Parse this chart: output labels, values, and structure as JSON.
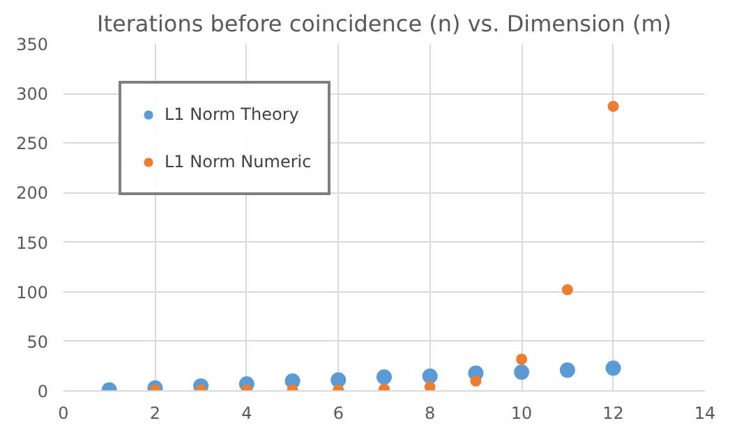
{
  "chart_data": {
    "type": "scatter",
    "title": "Iterations before coincidence (n) vs. Dimension (m)",
    "series": [
      {
        "name": "L1 Norm Theory",
        "color": "#5b9bd5",
        "x": [
          1,
          2,
          3,
          4,
          5,
          6,
          7,
          8,
          9,
          10,
          11,
          12
        ],
        "values": [
          1,
          3,
          5,
          7,
          10,
          11,
          14,
          15,
          18,
          19,
          21,
          23
        ]
      },
      {
        "name": "L1 Norm Numeric",
        "color": "#ed7d31",
        "x": [
          2,
          3,
          4,
          5,
          6,
          7,
          8,
          9,
          10,
          11,
          12
        ],
        "values": [
          1,
          1,
          1,
          1,
          1,
          2,
          4,
          10,
          32,
          102,
          287
        ]
      }
    ],
    "xlim": [
      0,
      14
    ],
    "xticks": [
      0,
      2,
      4,
      6,
      8,
      10,
      12,
      14
    ],
    "ylim": [
      0,
      350
    ],
    "yticks": [
      0,
      50,
      100,
      150,
      200,
      250,
      300,
      350
    ],
    "grid": true,
    "legend": "top left",
    "marker": "circle"
  }
}
